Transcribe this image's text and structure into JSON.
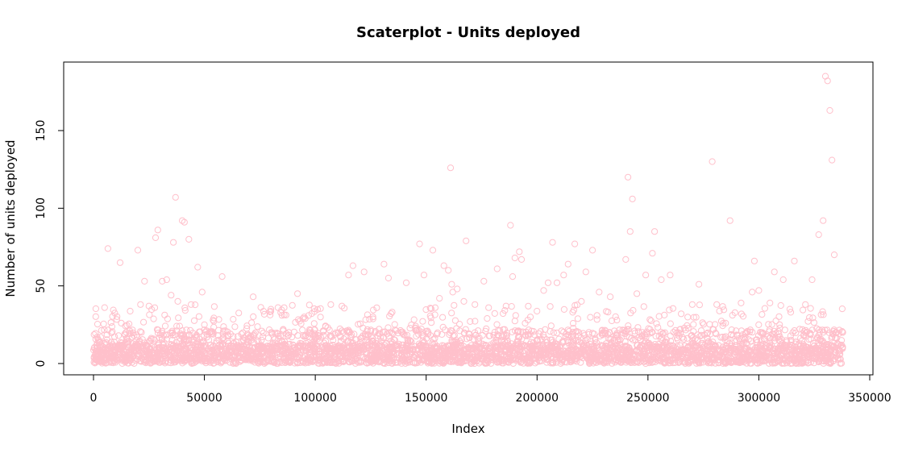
{
  "chart_data": {
    "type": "scatter",
    "title": "Scaterplot - Units deployed",
    "xlabel": "Index",
    "ylabel": "Number of units deployed",
    "xlim": [
      0,
      338000
    ],
    "ylim": [
      0,
      185
    ],
    "x_ticks": [
      0,
      50000,
      100000,
      150000,
      200000,
      250000,
      300000,
      350000
    ],
    "x_tick_labels": [
      "0",
      "50000",
      "100000",
      "150000",
      "200000",
      "250000",
      "300000",
      "350000"
    ],
    "y_ticks": [
      0,
      50,
      100,
      150
    ],
    "y_tick_labels": [
      "0",
      "50",
      "100",
      "150"
    ],
    "grid": false,
    "legend": "none",
    "point_color": "#ffc0cb",
    "marker": "open-circle",
    "series": [
      {
        "x": [
          5000,
          6500,
          12000,
          20000,
          23000,
          25000,
          28000,
          29000,
          31000,
          33000,
          35000,
          36000,
          37000,
          38000,
          40000,
          41000,
          43000,
          44000,
          47000,
          49000,
          50000,
          58000,
          72000,
          80000,
          85000,
          92000,
          95000,
          107000,
          112000,
          115000,
          117000,
          122000,
          126000,
          131000,
          133000,
          141000,
          147000,
          149000,
          153000,
          156000,
          158000,
          160000,
          161000,
          161500,
          162000,
          164000,
          167000,
          168000,
          172000,
          176000,
          182000,
          186000,
          188000,
          189000,
          190000,
          192000,
          193000,
          197000,
          203000,
          205000,
          207000,
          209000,
          212000,
          214000,
          217000,
          220000,
          222000,
          225000,
          228000,
          233000,
          236000,
          240000,
          241000,
          242000,
          243000,
          245000,
          249000,
          252000,
          253000,
          256000,
          260000,
          265000,
          270000,
          273000,
          279000,
          281000,
          285000,
          287000,
          292000,
          297000,
          298000,
          300000,
          305000,
          307000,
          311000,
          314000,
          316000,
          321000,
          324000,
          327000,
          329000,
          330000,
          331000,
          332000,
          333000,
          334000
        ],
        "y": [
          36,
          74,
          65,
          73,
          53,
          37,
          81,
          86,
          53,
          54,
          44,
          78,
          107,
          40,
          92,
          91,
          80,
          38,
          62,
          46,
          25,
          56,
          43,
          35,
          31,
          45,
          30,
          38,
          37,
          57,
          63,
          59,
          30,
          64,
          55,
          52,
          77,
          57,
          73,
          42,
          63,
          60,
          126,
          51,
          46,
          48,
          40,
          79,
          38,
          53,
          61,
          37,
          89,
          56,
          68,
          72,
          67,
          30,
          47,
          52,
          78,
          52,
          57,
          64,
          77,
          40,
          59,
          73,
          46,
          43,
          28,
          67,
          120,
          85,
          106,
          45,
          57,
          71,
          85,
          54,
          57,
          32,
          38,
          51,
          130,
          38,
          26,
          92,
          39,
          46,
          66,
          47,
          39,
          59,
          54,
          35,
          66,
          38,
          54,
          83,
          92,
          185,
          182,
          163,
          131,
          70
        ]
      }
    ]
  }
}
